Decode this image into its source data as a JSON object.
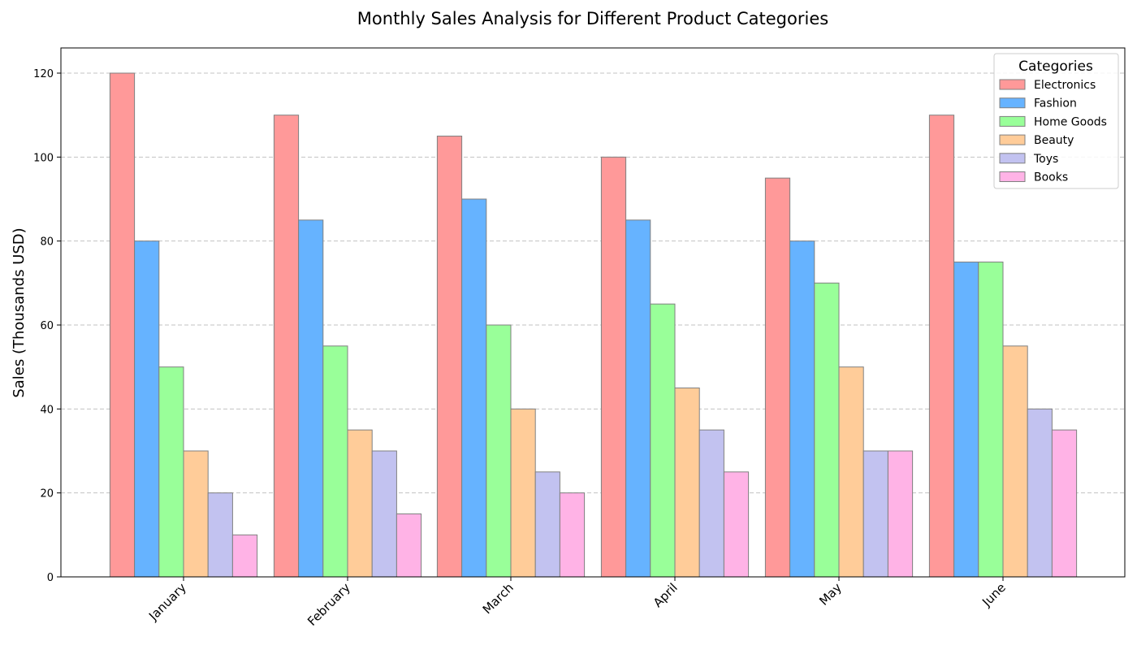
{
  "chart_data": {
    "type": "bar",
    "title": "Monthly Sales Analysis for Different Product Categories",
    "xlabel": "",
    "ylabel": "Sales (Thousands USD)",
    "ylim": [
      0,
      126
    ],
    "yticks": [
      0,
      20,
      40,
      60,
      80,
      100,
      120
    ],
    "grid": "y-dashed",
    "legend": {
      "title": "Categories",
      "placement": "top-right"
    },
    "categories": [
      "January",
      "February",
      "March",
      "April",
      "May",
      "June"
    ],
    "series": [
      {
        "name": "Electronics",
        "color": "#ff9999",
        "values": [
          120,
          110,
          105,
          100,
          95,
          110
        ]
      },
      {
        "name": "Fashion",
        "color": "#66b3ff",
        "values": [
          80,
          85,
          90,
          85,
          80,
          75
        ]
      },
      {
        "name": "Home Goods",
        "color": "#99ff99",
        "values": [
          50,
          55,
          60,
          65,
          70,
          75
        ]
      },
      {
        "name": "Beauty",
        "color": "#ffcc99",
        "values": [
          30,
          35,
          40,
          45,
          50,
          55
        ]
      },
      {
        "name": "Toys",
        "color": "#c2c2f0",
        "values": [
          20,
          30,
          25,
          35,
          30,
          40
        ]
      },
      {
        "name": "Books",
        "color": "#ffb3e6",
        "values": [
          10,
          15,
          20,
          25,
          30,
          35
        ]
      }
    ]
  }
}
